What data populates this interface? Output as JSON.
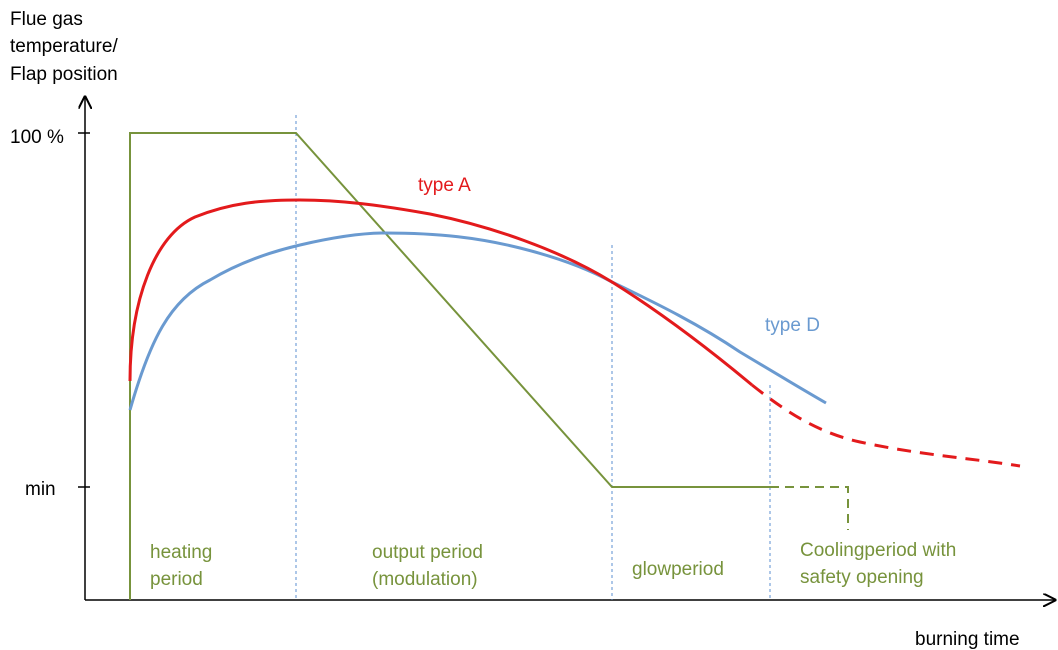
{
  "axis": {
    "y_label": [
      "Flue gas",
      "temperature/",
      "Flap position"
    ],
    "x_label": "burning time",
    "y_levels": [
      "100 %",
      "min"
    ]
  },
  "curves": [
    {
      "label": "type A"
    },
    {
      "label": "type D"
    }
  ],
  "periods": [
    {
      "label": [
        "heating",
        "period"
      ]
    },
    {
      "label": [
        "output period",
        "(modulation)"
      ]
    },
    {
      "label": [
        "glowperiod"
      ]
    },
    {
      "label": [
        "Coolingperiod with",
        "safety opening"
      ]
    }
  ]
}
